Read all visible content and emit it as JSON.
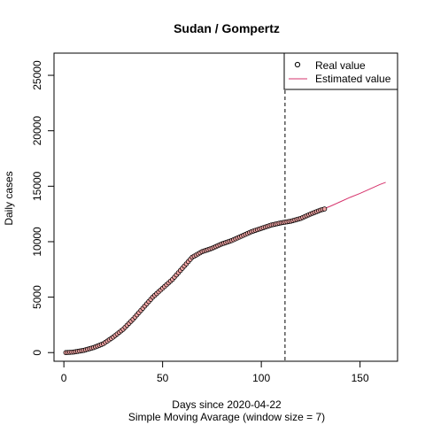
{
  "chart_data": {
    "type": "line",
    "title": "Sudan / Gompertz",
    "xlabel": "Days since 2020-04-22",
    "xlabel_sub": "Simple Moving Avarage (window size = 7)",
    "ylabel": "Daily cases",
    "xlim": [
      -5,
      169
    ],
    "ylim": [
      -780,
      27000
    ],
    "x_ticks": [
      0,
      50,
      100,
      150
    ],
    "y_ticks": [
      0,
      5000,
      10000,
      15000,
      20000,
      25000
    ],
    "cutoff_x": 112,
    "grid": false,
    "legend": "top-right",
    "series": [
      {
        "name": "Real value",
        "kind": "points",
        "color": "#000000",
        "fill": "#F4A6A6",
        "x_range": [
          1,
          132
        ],
        "anchors": [
          [
            1,
            0
          ],
          [
            5,
            50
          ],
          [
            10,
            200
          ],
          [
            15,
            450
          ],
          [
            20,
            800
          ],
          [
            25,
            1400
          ],
          [
            30,
            2100
          ],
          [
            35,
            3000
          ],
          [
            40,
            4000
          ],
          [
            45,
            5000
          ],
          [
            50,
            5800
          ],
          [
            55,
            6600
          ],
          [
            60,
            7600
          ],
          [
            65,
            8600
          ],
          [
            70,
            9100
          ],
          [
            75,
            9400
          ],
          [
            80,
            9800
          ],
          [
            85,
            10100
          ],
          [
            90,
            10500
          ],
          [
            95,
            10900
          ],
          [
            100,
            11200
          ],
          [
            105,
            11500
          ],
          [
            110,
            11700
          ],
          [
            115,
            11850
          ],
          [
            120,
            12100
          ],
          [
            125,
            12500
          ],
          [
            130,
            12850
          ],
          [
            132,
            12950
          ]
        ]
      },
      {
        "name": "Estimated value",
        "kind": "line",
        "color": "#D6336C",
        "points": [
          [
            1,
            0
          ],
          [
            5,
            50
          ],
          [
            10,
            200
          ],
          [
            15,
            450
          ],
          [
            20,
            800
          ],
          [
            25,
            1400
          ],
          [
            30,
            2100
          ],
          [
            35,
            3000
          ],
          [
            40,
            4000
          ],
          [
            45,
            5000
          ],
          [
            50,
            5800
          ],
          [
            55,
            6600
          ],
          [
            60,
            7600
          ],
          [
            65,
            8600
          ],
          [
            70,
            9100
          ],
          [
            75,
            9400
          ],
          [
            80,
            9800
          ],
          [
            85,
            10100
          ],
          [
            90,
            10500
          ],
          [
            95,
            10900
          ],
          [
            100,
            11200
          ],
          [
            105,
            11500
          ],
          [
            110,
            11700
          ],
          [
            115,
            11850
          ],
          [
            120,
            12100
          ],
          [
            125,
            12500
          ],
          [
            130,
            12850
          ],
          [
            135,
            13200
          ],
          [
            140,
            13600
          ],
          [
            145,
            14000
          ],
          [
            150,
            14350
          ],
          [
            155,
            14750
          ],
          [
            160,
            15150
          ],
          [
            163,
            15350
          ]
        ]
      }
    ]
  }
}
